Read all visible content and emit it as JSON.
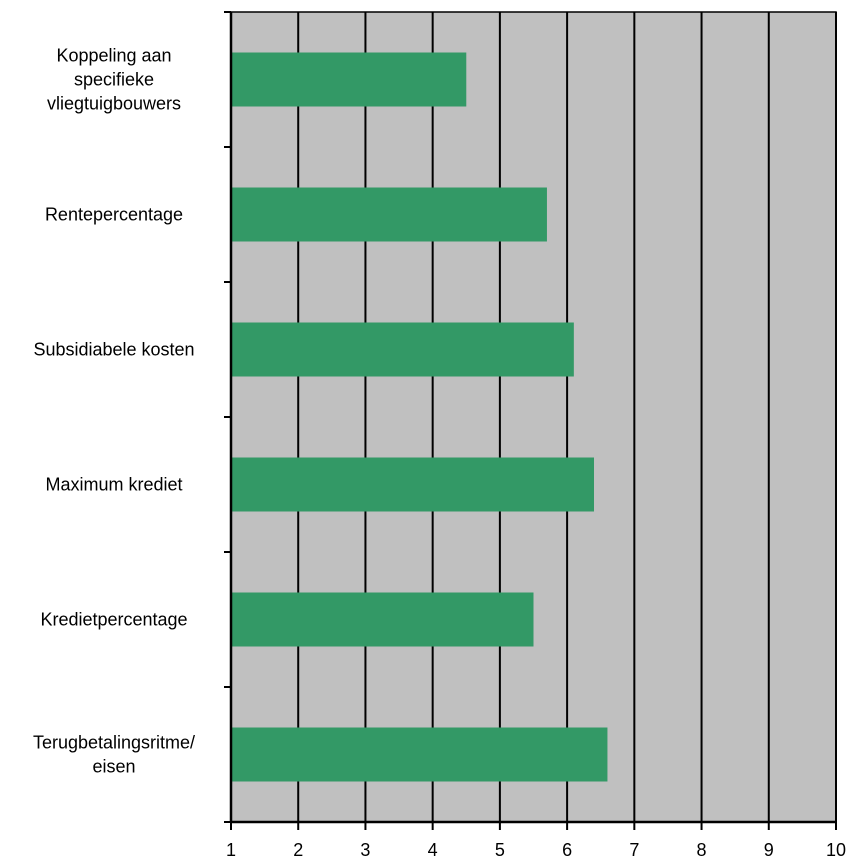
{
  "chart_data": {
    "type": "bar",
    "orientation": "horizontal",
    "title": "",
    "xlabel": "",
    "ylabel": "",
    "categories": [
      "Koppeling aan specifieke vliegtuigbouwers",
      "Rentepercentage",
      "Subsidiabele kosten",
      "Maximum krediet",
      "Kredietpercentage",
      "Terugbetalingsritme/ eisen"
    ],
    "category_label_lines": [
      [
        "Koppeling aan",
        "specifieke",
        "vliegtuigbouwers"
      ],
      [
        "Rentepercentage"
      ],
      [
        "Subsidiabele kosten"
      ],
      [
        "Maximum krediet"
      ],
      [
        "Kredietpercentage"
      ],
      [
        "Terugbetalingsritme/",
        "eisen"
      ]
    ],
    "values": [
      4.5,
      5.7,
      6.1,
      6.4,
      5.5,
      6.6
    ],
    "xlim": [
      1,
      10
    ],
    "x_ticks": [
      "1",
      "2",
      "3",
      "4",
      "5",
      "6",
      "7",
      "8",
      "9",
      "10"
    ],
    "grid": true,
    "legend": "none",
    "colors": {
      "bar": "#339966",
      "plot_background": "#C0C0C0",
      "grid": "#000000"
    }
  }
}
